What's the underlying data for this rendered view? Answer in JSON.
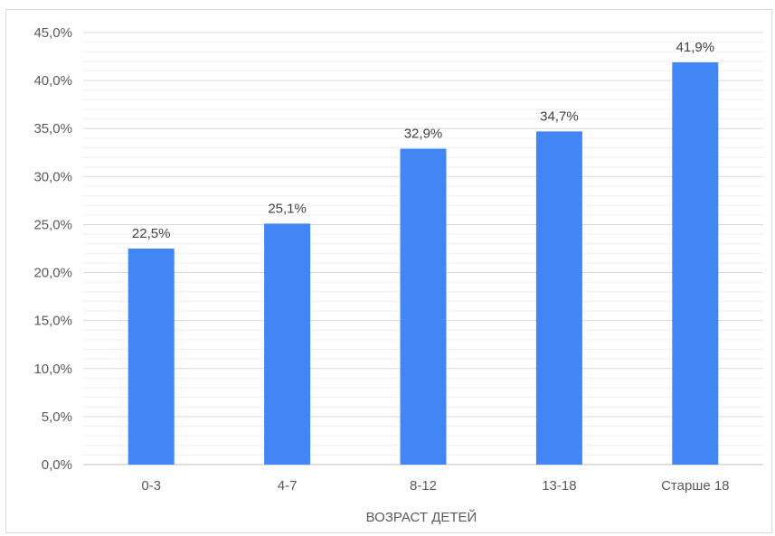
{
  "chart_data": {
    "type": "bar",
    "title": "",
    "xlabel": "ВОЗРАСТ ДЕТЕЙ",
    "ylabel": "",
    "categories": [
      "0-3",
      "4-7",
      "8-12",
      "13-18",
      "Старше 18"
    ],
    "values": [
      22.5,
      25.1,
      32.9,
      34.7,
      41.9
    ],
    "data_labels": [
      "22,5%",
      "25,1%",
      "32,9%",
      "34,7%",
      "41,9%"
    ],
    "ylim": [
      0,
      45
    ],
    "y_ticks": [
      0,
      5,
      10,
      15,
      20,
      25,
      30,
      35,
      40,
      45
    ],
    "y_tick_labels": [
      "0,0%",
      "5,0%",
      "10,0%",
      "15,0%",
      "20,0%",
      "25,0%",
      "30,0%",
      "35,0%",
      "40,0%",
      "45,0%"
    ],
    "grid": true,
    "legend": "none",
    "colors": {
      "bar": "#4285f4",
      "major_grid": "#d9d9d9",
      "minor_grid": "#efefef",
      "axis": "#bfbfbf"
    }
  }
}
